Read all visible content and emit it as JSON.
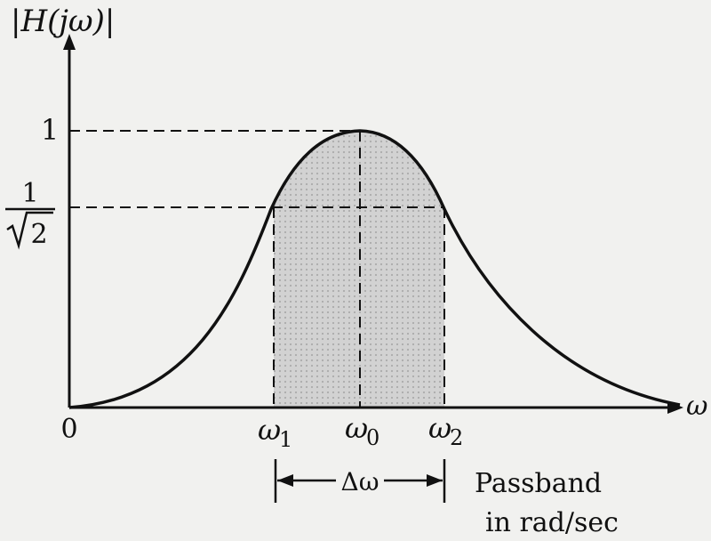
{
  "axes": {
    "y_label": "|H(jω)|",
    "x_label": "ω",
    "origin_label": "0"
  },
  "levels": {
    "peak_label": "1",
    "half_power_numerator": "1",
    "half_power_radical": "2"
  },
  "frequencies": {
    "w1": {
      "symbol": "ω",
      "sub": "1"
    },
    "w0": {
      "symbol": "ω",
      "sub": "0"
    },
    "w2": {
      "symbol": "ω",
      "sub": "2"
    }
  },
  "bandwidth": {
    "label": "Δω"
  },
  "caption": {
    "line1": "Passband",
    "line2": "in rad/sec"
  },
  "colors": {
    "ink": "#111111",
    "shade": "#c9c9c9",
    "background": "#f1f1ef"
  }
}
